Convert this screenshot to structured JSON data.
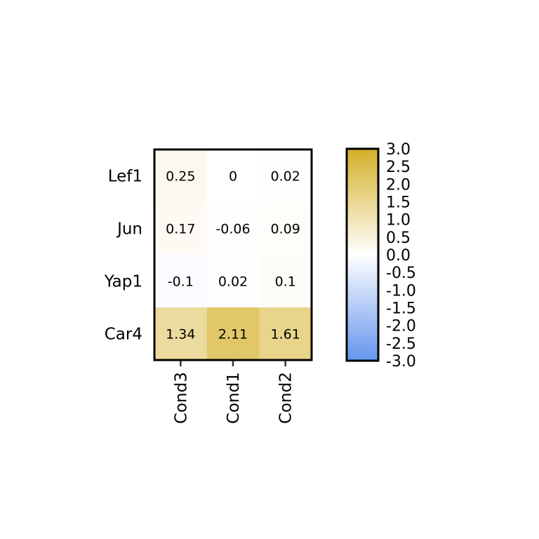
{
  "chart_data": {
    "type": "heatmap",
    "rows": [
      "Lef1",
      "Jun",
      "Yap1",
      "Car4"
    ],
    "columns": [
      "Cond3",
      "Cond1",
      "Cond2"
    ],
    "values": [
      [
        0.25,
        0,
        0.02
      ],
      [
        0.17,
        -0.06,
        0.09
      ],
      [
        -0.1,
        0.02,
        0.1
      ],
      [
        1.34,
        2.11,
        1.61
      ]
    ],
    "cell_labels": [
      [
        "0.25",
        "0",
        "0.02"
      ],
      [
        "0.17",
        "-0.06",
        "0.09"
      ],
      [
        "-0.1",
        "0.02",
        "0.1"
      ],
      [
        "1.34",
        "2.11",
        "1.61"
      ]
    ],
    "color_scale": {
      "min": -3.0,
      "mid": 0.0,
      "max": 3.0,
      "low_color": "#6495ed",
      "mid_color": "#ffffff",
      "high_color": "#d4af27"
    },
    "colorbar_ticks": [
      "3.0",
      "2.5",
      "2.0",
      "1.5",
      "1.0",
      "0.5",
      "0.0",
      "-0.5",
      "-1.0",
      "-1.5",
      "-2.0",
      "-2.5",
      "-3.0"
    ],
    "legend_position": "right"
  }
}
